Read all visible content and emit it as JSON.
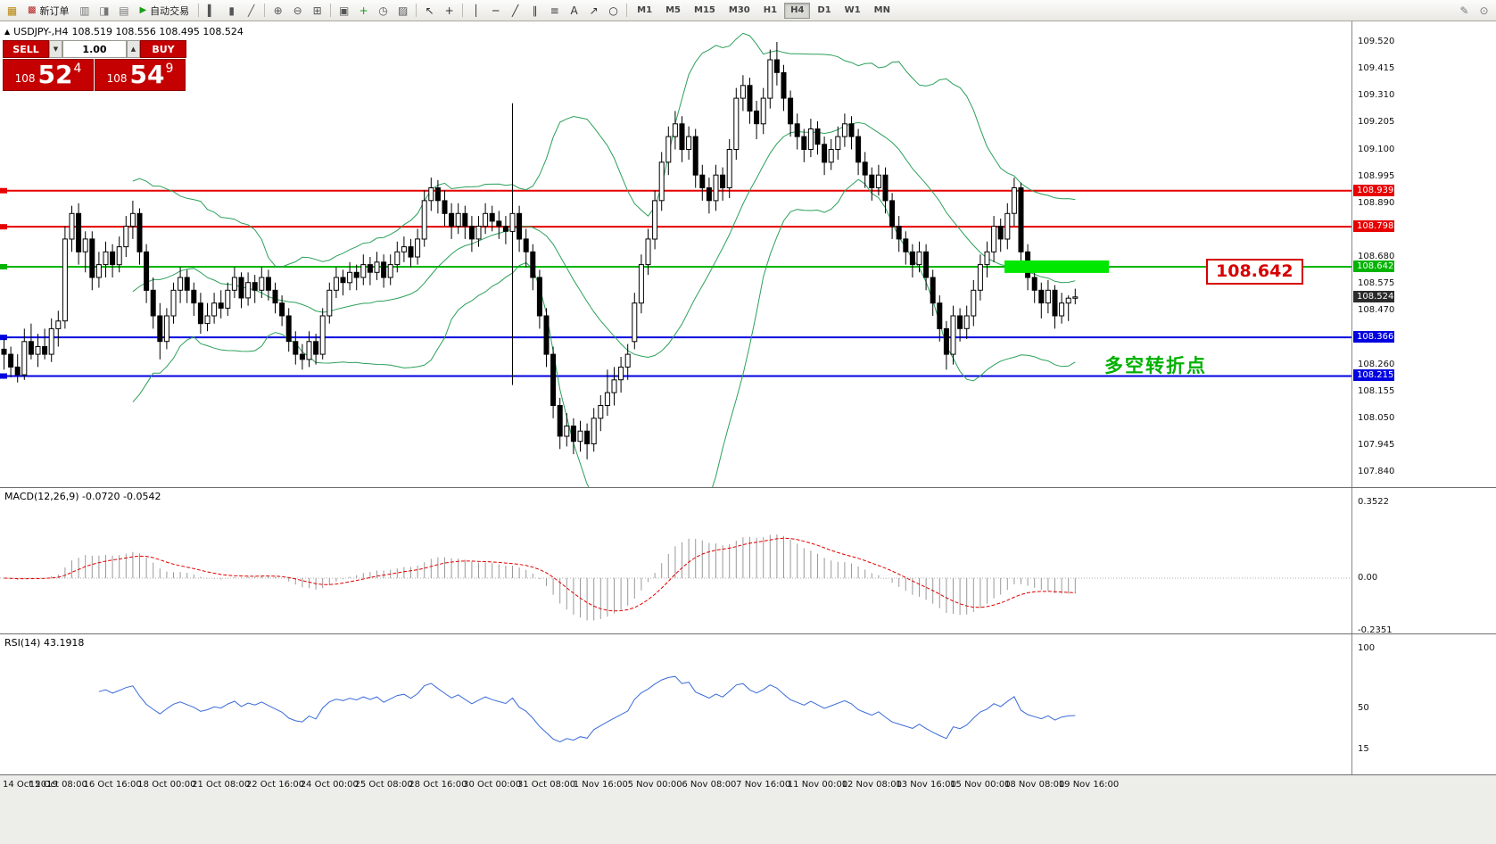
{
  "toolbar": {
    "items": [
      {
        "t": "icon",
        "name": "terminal-icon",
        "g": "▦",
        "c": "#B8860B"
      },
      {
        "t": "label",
        "name": "new-order-button",
        "g": "▩",
        "gc": "#B22222",
        "label": "新订单"
      },
      {
        "t": "icon",
        "name": "market-watch-icon",
        "g": "▥",
        "c": "#777777"
      },
      {
        "t": "icon",
        "name": "data-window-icon",
        "g": "◨",
        "c": "#777777"
      },
      {
        "t": "icon",
        "name": "navigator-icon",
        "g": "▤",
        "c": "#777777"
      },
      {
        "t": "label",
        "name": "autotrading-button",
        "g": "▶",
        "gc": "#18A018",
        "label": "自动交易"
      },
      {
        "t": "sep"
      },
      {
        "t": "icon",
        "name": "bar-chart-icon",
        "g": "▍",
        "c": "#555555"
      },
      {
        "t": "icon",
        "name": "candlestick-chart-icon",
        "g": "▮",
        "c": "#555555"
      },
      {
        "t": "icon",
        "name": "line-chart-icon",
        "g": "╱",
        "c": "#555555"
      },
      {
        "t": "sep"
      },
      {
        "t": "icon",
        "name": "zoom-in-icon",
        "g": "⊕",
        "c": "#555555"
      },
      {
        "t": "icon",
        "name": "zoom-out-icon",
        "g": "⊖",
        "c": "#555555"
      },
      {
        "t": "icon",
        "name": "tile-windows-icon",
        "g": "⊞",
        "c": "#555555"
      },
      {
        "t": "sep"
      },
      {
        "t": "icon",
        "name": "auto-arrange-icon",
        "g": "▣",
        "c": "#555555"
      },
      {
        "t": "icon",
        "name": "indicators-icon",
        "g": "+",
        "c": "#18A018"
      },
      {
        "t": "icon",
        "name": "periods-icon",
        "g": "◷",
        "c": "#555555"
      },
      {
        "t": "icon",
        "name": "templates-icon",
        "g": "▨",
        "c": "#555555"
      },
      {
        "t": "sep"
      },
      {
        "t": "icon",
        "name": "cursor-icon",
        "g": "↖",
        "c": "#333333"
      },
      {
        "t": "icon",
        "name": "crosshair-icon",
        "g": "+",
        "c": "#333333"
      },
      {
        "t": "sep"
      },
      {
        "t": "icon",
        "name": "vertical-line-icon",
        "g": "│",
        "c": "#333333"
      },
      {
        "t": "icon",
        "name": "horizontal-line-icon",
        "g": "─",
        "c": "#333333"
      },
      {
        "t": "icon",
        "name": "trendline-icon",
        "g": "╱",
        "c": "#333333"
      },
      {
        "t": "icon",
        "name": "channel-icon",
        "g": "∥",
        "c": "#333333"
      },
      {
        "t": "icon",
        "name": "fibonacci-icon",
        "g": "≡",
        "c": "#333333"
      },
      {
        "t": "icon",
        "name": "text-label-icon",
        "g": "A",
        "c": "#333333"
      },
      {
        "t": "icon",
        "name": "arrows-icon",
        "g": "↗",
        "c": "#333333"
      },
      {
        "t": "icon",
        "name": "shapes-icon",
        "g": "○",
        "c": "#333333"
      },
      {
        "t": "sep"
      },
      {
        "t": "tfs"
      },
      {
        "t": "spacer"
      },
      {
        "t": "icon",
        "name": "feedback-icon",
        "g": "✎",
        "c": "#777777"
      },
      {
        "t": "icon",
        "name": "search-icon",
        "g": "⊙",
        "c": "#777777"
      }
    ],
    "timeframes": [
      "M1",
      "M5",
      "M15",
      "M30",
      "H1",
      "H4",
      "D1",
      "W1",
      "MN"
    ],
    "active_timeframe": "H4"
  },
  "window_header": {
    "symbol_title": "USDJPY-,H4",
    "ohlc_text": "108.519 108.556 108.495 108.524"
  },
  "trade_panel": {
    "sell_label": "SELL",
    "buy_label": "BUY",
    "volume": "1.00",
    "sell_price_prefix": "108",
    "sell_price_big": "52",
    "sell_price_sup": "4",
    "buy_price_prefix": "108",
    "buy_price_big": "54",
    "buy_price_sup": "9"
  },
  "price_axis_labels": [
    "109.520",
    "109.415",
    "109.310",
    "109.205",
    "109.100",
    "108.995",
    "108.890",
    "108.785",
    "108.680",
    "108.575",
    "108.470",
    "108.365",
    "108.260",
    "108.155",
    "108.050",
    "107.945",
    "107.840"
  ],
  "axis_markers": [
    {
      "label": "108.939",
      "value": 108.939,
      "bg": "#E60000",
      "line": true
    },
    {
      "label": "108.798",
      "value": 108.798,
      "bg": "#E60000",
      "line": true
    },
    {
      "label": "108.642",
      "value": 108.642,
      "bg": "#00B400",
      "line": true
    },
    {
      "label": "108.524",
      "value": 108.524,
      "bg": "#2B2B2B",
      "line": false
    },
    {
      "label": "108.366",
      "value": 108.366,
      "bg": "#0000E0",
      "line": true
    },
    {
      "label": "108.215",
      "value": 108.215,
      "bg": "#0000E0",
      "line": true
    }
  ],
  "highlight": {
    "value": 108.642,
    "color": "#00E800"
  },
  "callout": {
    "text": "108.642",
    "color": "#D60000"
  },
  "annotation": {
    "text": "多空转折点",
    "color": "#00B000"
  },
  "macd_panel": {
    "label": "MACD(12,26,9) -0.0720 -0.0542",
    "scale_labels": [
      "0.3522",
      "0.00",
      "-0.2351"
    ]
  },
  "rsi_panel": {
    "label": "RSI(14) 43.1918",
    "scale_labels": [
      "100",
      "50",
      "15"
    ]
  },
  "time_axis": [
    "14 Oct 2019",
    "15 Oct 08:00",
    "16 Oct 16:00",
    "18 Oct 00:00",
    "21 Oct 08:00",
    "22 Oct 16:00",
    "24 Oct 00:00",
    "25 Oct 08:00",
    "28 Oct 16:00",
    "30 Oct 00:00",
    "31 Oct 08:00",
    "1 Nov 16:00",
    "5 Nov 00:00",
    "6 Nov 08:00",
    "7 Nov 16:00",
    "11 Nov 00:00",
    "12 Nov 08:00",
    "13 Nov 16:00",
    "15 Nov 00:00",
    "18 Nov 08:00",
    "19 Nov 16:00"
  ],
  "chart_data": {
    "type": "candlestick",
    "symbol": "USDJPY",
    "timeframe": "H4",
    "y_axis": {
      "min": 107.84,
      "max": 109.52,
      "tick_step": 0.105
    },
    "overlays": {
      "bollinger_period": 20,
      "bollinger_deviation": 2,
      "bollinger_color": "#2CA05A"
    },
    "horizontal_lines": [
      {
        "value": 108.939,
        "color": "#E60000"
      },
      {
        "value": 108.798,
        "color": "#E60000"
      },
      {
        "value": 108.642,
        "color": "#00B400"
      },
      {
        "value": 108.366,
        "color": "#0000E0"
      },
      {
        "value": 108.215,
        "color": "#0000E0"
      }
    ],
    "current_bid": 108.524,
    "sub_charts": [
      {
        "type": "macd-histogram",
        "params": [
          12,
          26,
          9
        ],
        "last_values": [
          -0.072,
          -0.0542
        ],
        "scale": [
          0.3522,
          0.0,
          -0.2351
        ]
      },
      {
        "type": "rsi",
        "period": 14,
        "last_value": 43.1918,
        "scale": [
          100,
          50,
          15
        ]
      }
    ],
    "candles": [
      [
        108.32,
        108.36,
        108.24,
        108.3
      ],
      [
        108.3,
        108.33,
        108.21,
        108.25
      ],
      [
        108.25,
        108.3,
        108.19,
        108.22
      ],
      [
        108.22,
        108.4,
        108.2,
        108.35
      ],
      [
        108.35,
        108.42,
        108.28,
        108.3
      ],
      [
        108.3,
        108.38,
        108.25,
        108.33
      ],
      [
        108.33,
        108.4,
        108.28,
        108.3
      ],
      [
        108.3,
        108.44,
        108.27,
        108.4
      ],
      [
        108.4,
        108.47,
        108.33,
        108.43
      ],
      [
        108.43,
        108.8,
        108.4,
        108.75
      ],
      [
        108.75,
        108.88,
        108.7,
        108.85
      ],
      [
        108.85,
        108.89,
        108.65,
        108.7
      ],
      [
        108.7,
        108.78,
        108.62,
        108.75
      ],
      [
        108.75,
        108.78,
        108.55,
        108.6
      ],
      [
        108.6,
        108.7,
        108.56,
        108.65
      ],
      [
        108.65,
        108.74,
        108.6,
        108.7
      ],
      [
        108.7,
        108.73,
        108.6,
        108.65
      ],
      [
        108.65,
        108.76,
        108.62,
        108.72
      ],
      [
        108.72,
        108.84,
        108.68,
        108.8
      ],
      [
        108.8,
        108.9,
        108.75,
        108.85
      ],
      [
        108.85,
        108.87,
        108.65,
        108.7
      ],
      [
        108.7,
        108.73,
        108.5,
        108.55
      ],
      [
        108.55,
        108.6,
        108.4,
        108.45
      ],
      [
        108.45,
        108.5,
        108.28,
        108.35
      ],
      [
        108.35,
        108.48,
        108.32,
        108.45
      ],
      [
        108.45,
        108.58,
        108.42,
        108.55
      ],
      [
        108.55,
        108.64,
        108.5,
        108.6
      ],
      [
        108.6,
        108.63,
        108.5,
        108.55
      ],
      [
        108.55,
        108.58,
        108.45,
        108.5
      ],
      [
        108.5,
        108.54,
        108.38,
        108.42
      ],
      [
        108.42,
        108.5,
        108.39,
        108.45
      ],
      [
        108.45,
        108.54,
        108.42,
        108.5
      ],
      [
        108.5,
        108.55,
        108.44,
        108.48
      ],
      [
        108.48,
        108.58,
        108.45,
        108.55
      ],
      [
        108.55,
        108.64,
        108.52,
        108.6
      ],
      [
        108.6,
        108.62,
        108.48,
        108.52
      ],
      [
        108.52,
        108.62,
        108.49,
        108.58
      ],
      [
        108.58,
        108.61,
        108.5,
        108.55
      ],
      [
        108.55,
        108.64,
        108.52,
        108.6
      ],
      [
        108.6,
        108.63,
        108.51,
        108.55
      ],
      [
        108.55,
        108.58,
        108.46,
        108.5
      ],
      [
        108.5,
        108.53,
        108.41,
        108.45
      ],
      [
        108.45,
        108.48,
        108.31,
        108.35
      ],
      [
        108.35,
        108.39,
        108.26,
        108.3
      ],
      [
        108.3,
        108.34,
        108.24,
        108.28
      ],
      [
        108.28,
        108.39,
        108.25,
        108.35
      ],
      [
        108.35,
        108.38,
        108.26,
        108.3
      ],
      [
        108.3,
        108.48,
        108.28,
        108.45
      ],
      [
        108.45,
        108.58,
        108.42,
        108.55
      ],
      [
        108.55,
        108.64,
        108.52,
        108.6
      ],
      [
        108.6,
        108.63,
        108.53,
        108.58
      ],
      [
        108.58,
        108.66,
        108.55,
        108.62
      ],
      [
        108.62,
        108.65,
        108.55,
        108.6
      ],
      [
        108.6,
        108.69,
        108.57,
        108.65
      ],
      [
        108.65,
        108.68,
        108.57,
        108.62
      ],
      [
        108.62,
        108.7,
        108.59,
        108.66
      ],
      [
        108.66,
        108.69,
        108.56,
        108.6
      ],
      [
        108.6,
        108.69,
        108.57,
        108.65
      ],
      [
        108.65,
        108.74,
        108.62,
        108.7
      ],
      [
        108.7,
        108.76,
        108.66,
        108.72
      ],
      [
        108.72,
        108.75,
        108.64,
        108.68
      ],
      [
        108.68,
        108.79,
        108.65,
        108.75
      ],
      [
        108.75,
        108.94,
        108.72,
        108.9
      ],
      [
        108.9,
        108.99,
        108.86,
        108.95
      ],
      [
        108.95,
        108.98,
        108.85,
        108.9
      ],
      [
        108.9,
        108.94,
        108.8,
        108.85
      ],
      [
        108.85,
        108.89,
        108.75,
        108.8
      ],
      [
        108.8,
        108.89,
        108.77,
        108.85
      ],
      [
        108.85,
        108.88,
        108.75,
        108.8
      ],
      [
        108.8,
        108.84,
        108.7,
        108.75
      ],
      [
        108.75,
        108.84,
        108.72,
        108.8
      ],
      [
        108.8,
        108.89,
        108.77,
        108.85
      ],
      [
        108.85,
        108.88,
        108.78,
        108.82
      ],
      [
        108.82,
        108.86,
        108.75,
        108.8
      ],
      [
        108.8,
        108.84,
        108.73,
        108.78
      ],
      [
        108.78,
        109.28,
        108.18,
        108.85
      ],
      [
        108.85,
        108.88,
        108.7,
        108.75
      ],
      [
        108.75,
        108.79,
        108.64,
        108.7
      ],
      [
        108.7,
        108.73,
        108.55,
        108.6
      ],
      [
        108.6,
        108.63,
        108.4,
        108.45
      ],
      [
        108.45,
        108.48,
        108.25,
        108.3
      ],
      [
        108.3,
        108.33,
        108.05,
        108.1
      ],
      [
        108.1,
        108.13,
        107.93,
        107.98
      ],
      [
        107.98,
        108.07,
        107.94,
        108.02
      ],
      [
        108.02,
        108.05,
        107.91,
        107.96
      ],
      [
        107.96,
        108.04,
        107.92,
        108.0
      ],
      [
        108.0,
        108.03,
        107.89,
        107.95
      ],
      [
        107.95,
        108.09,
        107.92,
        108.05
      ],
      [
        108.05,
        108.14,
        108.0,
        108.1
      ],
      [
        108.1,
        108.24,
        108.06,
        108.15
      ],
      [
        108.15,
        108.25,
        108.1,
        108.2
      ],
      [
        108.2,
        108.29,
        108.15,
        108.25
      ],
      [
        108.25,
        108.34,
        108.2,
        108.3
      ],
      [
        108.35,
        108.54,
        108.32,
        108.5
      ],
      [
        108.5,
        108.69,
        108.46,
        108.65
      ],
      [
        108.65,
        108.79,
        108.61,
        108.75
      ],
      [
        108.75,
        108.94,
        108.71,
        108.9
      ],
      [
        108.9,
        109.09,
        108.86,
        109.05
      ],
      [
        109.05,
        109.19,
        109.0,
        109.15
      ],
      [
        109.15,
        109.25,
        109.1,
        109.2
      ],
      [
        109.2,
        109.23,
        109.05,
        109.1
      ],
      [
        109.1,
        109.19,
        109.06,
        109.15
      ],
      [
        109.15,
        109.18,
        108.95,
        109.0
      ],
      [
        109.0,
        109.04,
        108.9,
        108.95
      ],
      [
        108.95,
        108.99,
        108.85,
        108.9
      ],
      [
        108.9,
        109.04,
        108.86,
        109.0
      ],
      [
        109.0,
        109.03,
        108.9,
        108.95
      ],
      [
        108.95,
        109.14,
        108.91,
        109.1
      ],
      [
        109.1,
        109.34,
        109.06,
        109.3
      ],
      [
        109.3,
        109.39,
        109.25,
        109.35
      ],
      [
        109.35,
        109.38,
        109.2,
        109.25
      ],
      [
        109.25,
        109.29,
        109.14,
        109.2
      ],
      [
        109.2,
        109.34,
        109.16,
        109.3
      ],
      [
        109.3,
        109.49,
        109.26,
        109.45
      ],
      [
        109.45,
        109.52,
        109.35,
        109.4
      ],
      [
        109.4,
        109.43,
        109.25,
        109.3
      ],
      [
        109.3,
        109.33,
        109.15,
        109.2
      ],
      [
        109.2,
        109.24,
        109.1,
        109.15
      ],
      [
        109.15,
        109.18,
        109.05,
        109.1
      ],
      [
        109.1,
        109.22,
        109.07,
        109.18
      ],
      [
        109.18,
        109.21,
        109.08,
        109.12
      ],
      [
        109.12,
        109.15,
        109.0,
        109.05
      ],
      [
        109.05,
        109.14,
        109.02,
        109.1
      ],
      [
        109.1,
        109.19,
        109.06,
        109.15
      ],
      [
        109.15,
        109.24,
        109.11,
        109.2
      ],
      [
        109.2,
        109.23,
        109.1,
        109.15
      ],
      [
        109.15,
        109.18,
        109.0,
        109.05
      ],
      [
        109.05,
        109.09,
        108.95,
        109.0
      ],
      [
        109.0,
        109.03,
        108.9,
        108.95
      ],
      [
        108.95,
        109.04,
        108.92,
        109.0
      ],
      [
        109.0,
        109.03,
        108.85,
        108.9
      ],
      [
        108.9,
        108.93,
        108.75,
        108.8
      ],
      [
        108.8,
        108.84,
        108.7,
        108.75
      ],
      [
        108.75,
        108.78,
        108.65,
        108.7
      ],
      [
        108.7,
        108.73,
        108.6,
        108.65
      ],
      [
        108.65,
        108.74,
        108.62,
        108.7
      ],
      [
        108.7,
        108.73,
        108.55,
        108.6
      ],
      [
        108.6,
        108.63,
        108.45,
        108.5
      ],
      [
        108.5,
        108.53,
        108.35,
        108.4
      ],
      [
        108.4,
        108.43,
        108.24,
        108.3
      ],
      [
        108.3,
        108.49,
        108.26,
        108.45
      ],
      [
        108.45,
        108.48,
        108.35,
        108.4
      ],
      [
        108.4,
        108.49,
        108.36,
        108.45
      ],
      [
        108.45,
        108.59,
        108.41,
        108.55
      ],
      [
        108.55,
        108.69,
        108.51,
        108.65
      ],
      [
        108.65,
        108.74,
        108.6,
        108.7
      ],
      [
        108.7,
        108.84,
        108.66,
        108.8
      ],
      [
        108.8,
        108.83,
        108.7,
        108.75
      ],
      [
        108.75,
        108.89,
        108.71,
        108.85
      ],
      [
        108.85,
        108.99,
        108.8,
        108.95
      ],
      [
        108.95,
        108.97,
        108.65,
        108.7
      ],
      [
        108.7,
        108.73,
        108.55,
        108.6
      ],
      [
        108.6,
        108.64,
        108.5,
        108.55
      ],
      [
        108.55,
        108.58,
        108.44,
        108.5
      ],
      [
        108.5,
        108.59,
        108.46,
        108.55
      ],
      [
        108.55,
        108.57,
        108.4,
        108.45
      ],
      [
        108.45,
        108.54,
        108.42,
        108.5
      ],
      [
        108.5,
        108.53,
        108.43,
        108.519
      ],
      [
        108.519,
        108.556,
        108.495,
        108.524
      ]
    ]
  }
}
